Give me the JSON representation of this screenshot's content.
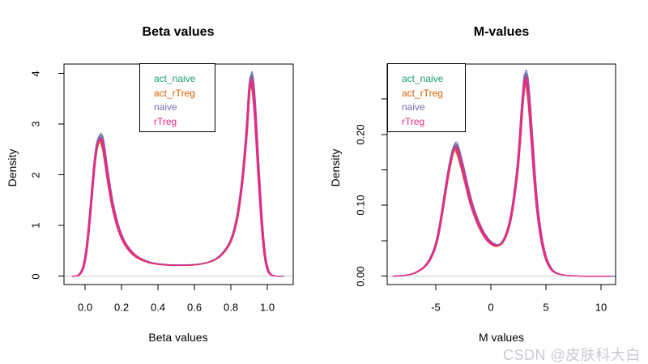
{
  "watermark": {
    "text": "CSDN @皮肤科大白",
    "color": "#c9c9d2"
  },
  "palette": {
    "act_naive": "#1B9E77",
    "act_rTreg": "#D95F02",
    "naive": "#7570B3",
    "rTreg": "#E7298A"
  },
  "chart_data": [
    {
      "type": "line",
      "title": "Beta values",
      "xlabel": "Beta values",
      "ylabel": "Density",
      "xlim": [
        -0.116,
        1.142
      ],
      "ylim": [
        -0.165,
        4.185
      ],
      "grid": false,
      "legend_position": "top",
      "zero_line_color": "#d9d9d9",
      "xticks": [
        {
          "v": 0.0,
          "label": "0.0"
        },
        {
          "v": 0.2,
          "label": "0.2"
        },
        {
          "v": 0.4,
          "label": "0.4"
        },
        {
          "v": 0.6,
          "label": "0.6"
        },
        {
          "v": 0.8,
          "label": "0.8"
        },
        {
          "v": 1.0,
          "label": "1.0"
        }
      ],
      "yticks": [
        {
          "v": 0,
          "label": "0"
        },
        {
          "v": 1,
          "label": "1"
        },
        {
          "v": 2,
          "label": "2"
        },
        {
          "v": 3,
          "label": "3"
        },
        {
          "v": 4,
          "label": "4"
        }
      ],
      "legend": [
        "act_naive",
        "act_rTreg",
        "naive",
        "rTreg"
      ],
      "series": [
        {
          "name": "act_naive",
          "scale": 0.985,
          "tail_end": 1.062
        },
        {
          "name": "act_rTreg",
          "scale": 0.955,
          "tail_end": 1.045
        },
        {
          "name": "naive",
          "scale": 1.0,
          "tail_end": 1.092
        },
        {
          "name": "rTreg",
          "scale": 0.972,
          "tail_end": 1.078
        }
      ],
      "sample_variants": [
        {
          "dx": -0.004,
          "sy": 0.99
        },
        {
          "dx": 0,
          "sy": 1.0
        },
        {
          "dx": 0.004,
          "sy": 1.012
        }
      ],
      "density_curve": [
        [
          -0.066,
          0
        ],
        [
          -0.05,
          0.004
        ],
        [
          -0.04,
          0.012
        ],
        [
          -0.03,
          0.04
        ],
        [
          -0.02,
          0.09
        ],
        [
          -0.01,
          0.18
        ],
        [
          0.0,
          0.35
        ],
        [
          0.01,
          0.6
        ],
        [
          0.02,
          0.95
        ],
        [
          0.03,
          1.35
        ],
        [
          0.04,
          1.8
        ],
        [
          0.05,
          2.2
        ],
        [
          0.06,
          2.52
        ],
        [
          0.07,
          2.7
        ],
        [
          0.08,
          2.78
        ],
        [
          0.09,
          2.76
        ],
        [
          0.1,
          2.62
        ],
        [
          0.11,
          2.38
        ],
        [
          0.12,
          2.12
        ],
        [
          0.13,
          1.88
        ],
        [
          0.14,
          1.65
        ],
        [
          0.15,
          1.45
        ],
        [
          0.16,
          1.28
        ],
        [
          0.18,
          1.0
        ],
        [
          0.2,
          0.8
        ],
        [
          0.22,
          0.65
        ],
        [
          0.25,
          0.5
        ],
        [
          0.28,
          0.4
        ],
        [
          0.32,
          0.32
        ],
        [
          0.36,
          0.27
        ],
        [
          0.4,
          0.245
        ],
        [
          0.45,
          0.228
        ],
        [
          0.5,
          0.222
        ],
        [
          0.55,
          0.222
        ],
        [
          0.6,
          0.23
        ],
        [
          0.64,
          0.25
        ],
        [
          0.68,
          0.285
        ],
        [
          0.72,
          0.35
        ],
        [
          0.75,
          0.44
        ],
        [
          0.78,
          0.58
        ],
        [
          0.8,
          0.72
        ],
        [
          0.82,
          0.95
        ],
        [
          0.84,
          1.3
        ],
        [
          0.86,
          1.85
        ],
        [
          0.875,
          2.4
        ],
        [
          0.89,
          3.1
        ],
        [
          0.9,
          3.7
        ],
        [
          0.91,
          3.98
        ],
        [
          0.92,
          3.85
        ],
        [
          0.93,
          3.45
        ],
        [
          0.94,
          2.85
        ],
        [
          0.95,
          2.2
        ],
        [
          0.96,
          1.6
        ],
        [
          0.97,
          1.05
        ],
        [
          0.98,
          0.62
        ],
        [
          0.99,
          0.33
        ],
        [
          1.0,
          0.16
        ],
        [
          1.01,
          0.07
        ],
        [
          1.02,
          0.03
        ],
        [
          1.035,
          0.01
        ],
        [
          1.05,
          0.003
        ],
        [
          1.065,
          0.001
        ],
        [
          1.08,
          0
        ],
        [
          1.092,
          0
        ]
      ]
    },
    {
      "type": "line",
      "title": "M-values",
      "xlabel": "M values",
      "ylabel": "Density",
      "xlim": [
        -9.41,
        11.32
      ],
      "ylim": [
        -0.0118,
        0.2992
      ],
      "grid": false,
      "legend_position": "topleft",
      "zero_line_color": "#d9d9d9",
      "xticks": [
        {
          "v": -5,
          "label": "-5"
        },
        {
          "v": 0,
          "label": "0"
        },
        {
          "v": 5,
          "label": "5"
        },
        {
          "v": 10,
          "label": "10"
        }
      ],
      "yticks": [
        {
          "v": 0.0,
          "label": "0.00"
        },
        {
          "v": 0.05,
          "label": ""
        },
        {
          "v": 0.1,
          "label": "0.10"
        },
        {
          "v": 0.15,
          "label": ""
        },
        {
          "v": 0.2,
          "label": "0.20"
        },
        {
          "v": 0.25,
          "label": ""
        }
      ],
      "legend": [
        "act_naive",
        "act_rTreg",
        "naive",
        "rTreg"
      ],
      "series": [
        {
          "name": "act_naive",
          "scale": 0.985,
          "tail_end": 10.4
        },
        {
          "name": "act_rTreg",
          "scale": 0.955,
          "tail_end": 9.0
        },
        {
          "name": "naive",
          "scale": 1.0,
          "tail_end": 11.35
        },
        {
          "name": "rTreg",
          "scale": 0.972,
          "tail_end": 10.9
        }
      ],
      "sample_variants": [
        {
          "dx": -0.07,
          "sy": 0.99
        },
        {
          "dx": 0,
          "sy": 1.0
        },
        {
          "dx": 0.07,
          "sy": 1.012
        }
      ],
      "density_curve": [
        [
          -8.8,
          0
        ],
        [
          -8,
          0.001
        ],
        [
          -7.5,
          0.002
        ],
        [
          -7,
          0.004
        ],
        [
          -6.5,
          0.008
        ],
        [
          -6,
          0.014
        ],
        [
          -5.5,
          0.025
        ],
        [
          -5,
          0.045
        ],
        [
          -4.6,
          0.075
        ],
        [
          -4.2,
          0.115
        ],
        [
          -3.9,
          0.145
        ],
        [
          -3.6,
          0.17
        ],
        [
          -3.4,
          0.182
        ],
        [
          -3.25,
          0.187
        ],
        [
          -3.1,
          0.185
        ],
        [
          -2.9,
          0.176
        ],
        [
          -2.6,
          0.158
        ],
        [
          -2.3,
          0.138
        ],
        [
          -2.0,
          0.118
        ],
        [
          -1.7,
          0.101
        ],
        [
          -1.4,
          0.087
        ],
        [
          -1.1,
          0.075
        ],
        [
          -0.8,
          0.065
        ],
        [
          -0.5,
          0.057
        ],
        [
          -0.2,
          0.051
        ],
        [
          0.1,
          0.047
        ],
        [
          0.4,
          0.0445
        ],
        [
          0.7,
          0.0445
        ],
        [
          1.0,
          0.048
        ],
        [
          1.3,
          0.056
        ],
        [
          1.6,
          0.07
        ],
        [
          1.9,
          0.092
        ],
        [
          2.2,
          0.125
        ],
        [
          2.45,
          0.16
        ],
        [
          2.65,
          0.2
        ],
        [
          2.8,
          0.235
        ],
        [
          2.95,
          0.265
        ],
        [
          3.05,
          0.283
        ],
        [
          3.15,
          0.287
        ],
        [
          3.3,
          0.278
        ],
        [
          3.45,
          0.256
        ],
        [
          3.6,
          0.225
        ],
        [
          3.8,
          0.18
        ],
        [
          4.0,
          0.135
        ],
        [
          4.2,
          0.1
        ],
        [
          4.45,
          0.068
        ],
        [
          4.7,
          0.045
        ],
        [
          5.0,
          0.026
        ],
        [
          5.3,
          0.015
        ],
        [
          5.6,
          0.008
        ],
        [
          6.0,
          0.004
        ],
        [
          6.5,
          0.002
        ],
        [
          7.0,
          0.001
        ],
        [
          7.5,
          0.0005
        ],
        [
          8.0,
          0.0002
        ],
        [
          8.5,
          0.0001
        ],
        [
          9.0,
          0
        ],
        [
          9.5,
          0
        ],
        [
          10.0,
          0
        ],
        [
          10.4,
          0
        ],
        [
          10.9,
          0
        ],
        [
          11.35,
          0
        ]
      ]
    }
  ]
}
